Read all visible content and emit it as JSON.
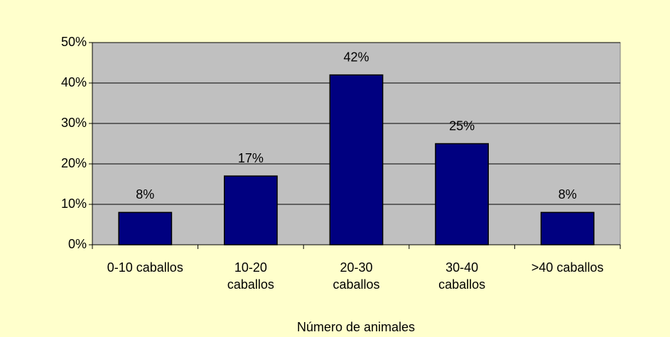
{
  "chart_data": {
    "type": "bar",
    "x_label": "Número de animales",
    "categories": [
      "0-10 caballos",
      "10-20\ncaballos",
      "20-30\ncaballos",
      "30-40\ncaballos",
      ">40 caballos"
    ],
    "values": [
      8,
      17,
      42,
      25,
      8
    ],
    "value_labels": [
      "8%",
      "17%",
      "42%",
      "25%",
      "8%"
    ],
    "color": "#000080",
    "ylim": [
      0,
      50
    ],
    "yticks": [
      {
        "value": 0,
        "label": "0%"
      },
      {
        "value": 10,
        "label": "10%"
      },
      {
        "value": 20,
        "label": "20%"
      },
      {
        "value": 30,
        "label": "30%"
      },
      {
        "value": 40,
        "label": "40%"
      },
      {
        "value": 50,
        "label": "50%"
      }
    ],
    "grid": true
  }
}
